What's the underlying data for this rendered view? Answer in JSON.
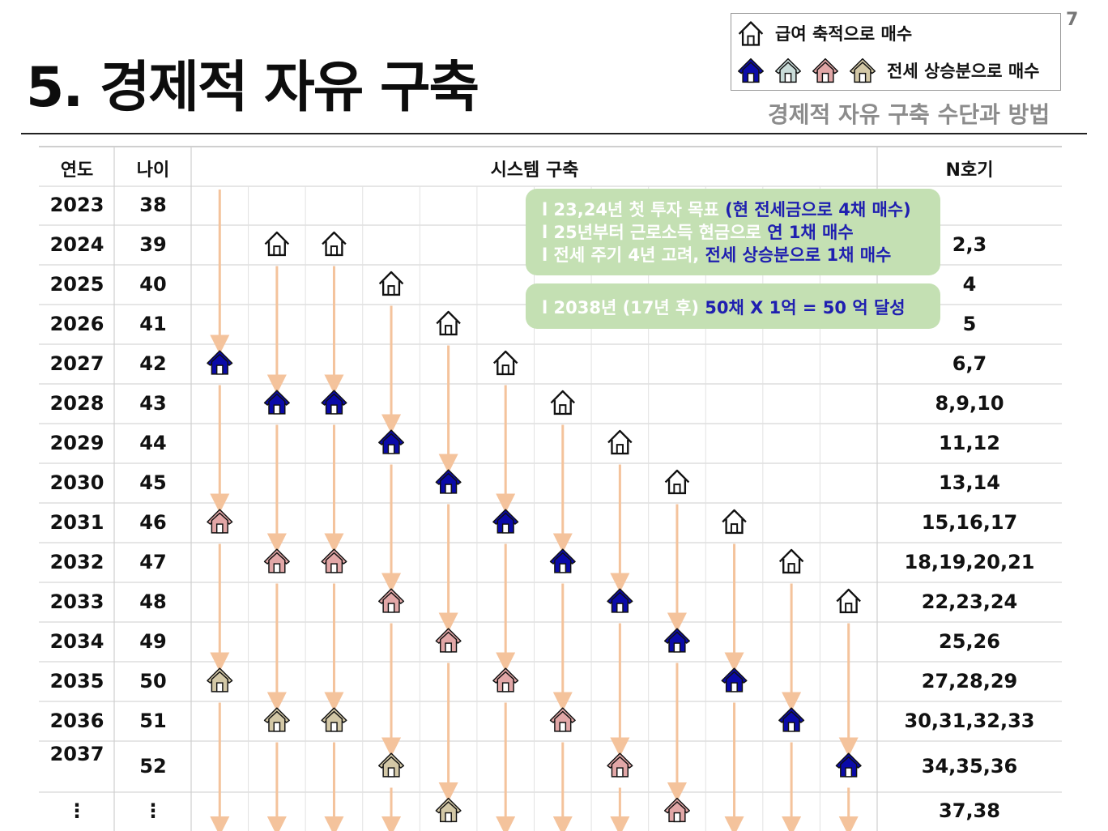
{
  "page_number": "7",
  "title": "5. 경제적 자유 구축",
  "subtitle": "경제적 자유 구축 수단과 방법",
  "legend": {
    "salary_label": "급여 축적으로 매수",
    "jeonse_label": "전세 상승분으로 매수"
  },
  "table": {
    "headers": {
      "year": "연도",
      "age": "나이",
      "system": "시스템 구축",
      "count": "N호기"
    },
    "rows": [
      {
        "year": "2023",
        "age": "38",
        "count": ""
      },
      {
        "year": "2024",
        "age": "39",
        "count": "2,3"
      },
      {
        "year": "2025",
        "age": "40",
        "count": "4"
      },
      {
        "year": "2026",
        "age": "41",
        "count": "5"
      },
      {
        "year": "2027",
        "age": "42",
        "count": "6,7"
      },
      {
        "year": "2028",
        "age": "43",
        "count": "8,9,10"
      },
      {
        "year": "2029",
        "age": "44",
        "count": "11,12"
      },
      {
        "year": "2030",
        "age": "45",
        "count": "13,14"
      },
      {
        "year": "2031",
        "age": "46",
        "count": "15,16,17"
      },
      {
        "year": "2032",
        "age": "47",
        "count": "18,19,20,21"
      },
      {
        "year": "2033",
        "age": "48",
        "count": "22,23,24"
      },
      {
        "year": "2034",
        "age": "49",
        "count": "25,26"
      },
      {
        "year": "2035",
        "age": "50",
        "count": "27,28,29"
      },
      {
        "year": "2036",
        "age": "51",
        "count": "30,31,32,33"
      },
      {
        "year": "2037",
        "age": "52",
        "count": "34,35,36"
      },
      {
        "year": "⋮",
        "age": "⋮",
        "count": "37,38"
      }
    ]
  },
  "notes": {
    "box1": [
      {
        "plain": "l  23,24년 첫 투자 목표 ",
        "highlight": "(현 전세금으로 4채 매수)"
      },
      {
        "plain": "l  25년부터 근로소득 현금으로 ",
        "highlight": "연 1채 매수"
      },
      {
        "plain": "l  전세 주기 4년 고려, ",
        "highlight": "전세 상승분으로 1채 매수"
      }
    ],
    "box2": {
      "plain": "l  2038년 (17년 후) ",
      "highlight": "50채 X 1억 = 50 억 달성"
    }
  },
  "colors": {
    "house_salary": "#ffffff",
    "house_jeonse_1": "#0a0aa8",
    "house_jeonse_2": "#c9dcd9",
    "house_jeonse_3": "#e2a7a7",
    "house_jeonse_4": "#d3c8a6",
    "arrow": "#f4c39c",
    "note_bg": "#c4e0b3",
    "highlight_text": "#1f1fb0"
  },
  "houses": [
    {
      "col": 1,
      "row": 1,
      "type": "outline"
    },
    {
      "col": 2,
      "row": 1,
      "type": "outline"
    },
    {
      "col": 3,
      "row": 2,
      "type": "outline"
    },
    {
      "col": 4,
      "row": 3,
      "type": "outline"
    },
    {
      "col": 0,
      "row": 4,
      "type": "blue"
    },
    {
      "col": 5,
      "row": 4,
      "type": "outline"
    },
    {
      "col": 1,
      "row": 5,
      "type": "blue"
    },
    {
      "col": 2,
      "row": 5,
      "type": "blue"
    },
    {
      "col": 6,
      "row": 5,
      "type": "outline"
    },
    {
      "col": 3,
      "row": 6,
      "type": "blue"
    },
    {
      "col": 7,
      "row": 6,
      "type": "outline"
    },
    {
      "col": 4,
      "row": 7,
      "type": "blue"
    },
    {
      "col": 8,
      "row": 7,
      "type": "outline"
    },
    {
      "col": 0,
      "row": 8,
      "type": "pink"
    },
    {
      "col": 5,
      "row": 8,
      "type": "blue"
    },
    {
      "col": 9,
      "row": 8,
      "type": "outline"
    },
    {
      "col": 1,
      "row": 9,
      "type": "pink"
    },
    {
      "col": 2,
      "row": 9,
      "type": "pink"
    },
    {
      "col": 6,
      "row": 9,
      "type": "blue"
    },
    {
      "col": 10,
      "row": 9,
      "type": "outline"
    },
    {
      "col": 3,
      "row": 10,
      "type": "pink"
    },
    {
      "col": 7,
      "row": 10,
      "type": "blue"
    },
    {
      "col": 11,
      "row": 10,
      "type": "outline"
    },
    {
      "col": 4,
      "row": 11,
      "type": "pink"
    },
    {
      "col": 8,
      "row": 11,
      "type": "blue"
    },
    {
      "col": 0,
      "row": 12,
      "type": "tan"
    },
    {
      "col": 5,
      "row": 12,
      "type": "pink"
    },
    {
      "col": 9,
      "row": 12,
      "type": "blue"
    },
    {
      "col": 1,
      "row": 13,
      "type": "tan"
    },
    {
      "col": 2,
      "row": 13,
      "type": "tan"
    },
    {
      "col": 6,
      "row": 13,
      "type": "pink"
    },
    {
      "col": 10,
      "row": 13,
      "type": "blue"
    },
    {
      "col": 3,
      "row": 14,
      "type": "tan"
    },
    {
      "col": 7,
      "row": 14,
      "type": "pink"
    },
    {
      "col": 11,
      "row": 14,
      "type": "blue"
    },
    {
      "col": 4,
      "row": 15,
      "type": "tan"
    },
    {
      "col": 8,
      "row": 15,
      "type": "pink"
    }
  ]
}
